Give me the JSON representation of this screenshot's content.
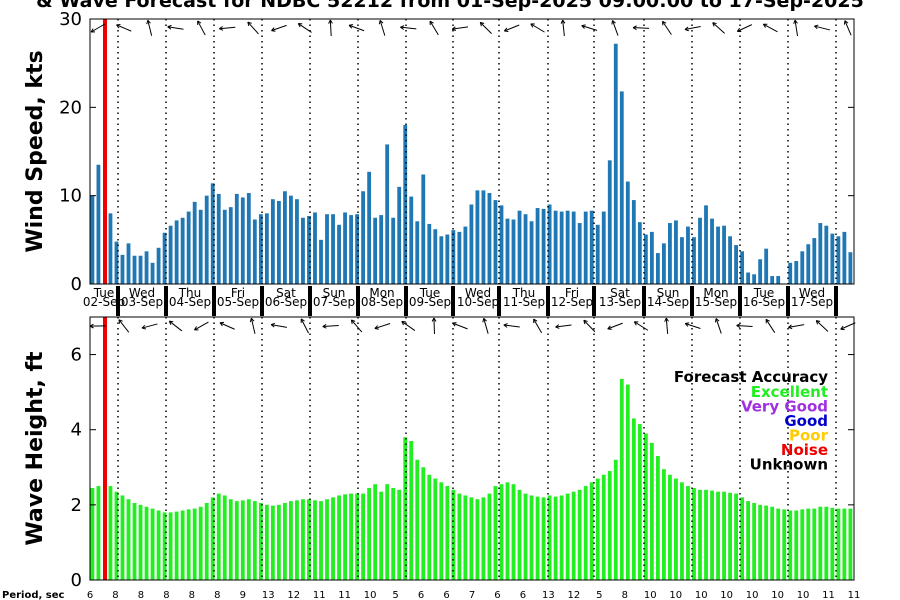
{
  "title": "& Wave Forecast for NDBC 52212 from 01-Sep-2025 09:00:00 to 17-Sep-2025",
  "chart_data": [
    {
      "type": "bar",
      "ylabel": "Wind Speed, kts",
      "ylim": [
        0,
        30
      ],
      "yticks": [
        "0",
        "10",
        "20",
        "30"
      ],
      "values": [
        10,
        13.5,
        0,
        8,
        4.8,
        3.3,
        4.6,
        3.2,
        3.2,
        3.7,
        2.4,
        4.1,
        5.8,
        6.6,
        7.2,
        7.5,
        8.2,
        9.3,
        8.4,
        10,
        11.4,
        10.2,
        8.4,
        8.7,
        10.2,
        9.8,
        10.3,
        7.3,
        7.9,
        8,
        9.6,
        9.4,
        10.5,
        10,
        9.6,
        7.5,
        7.7,
        8.1,
        5,
        7.9,
        7.9,
        6.7,
        8.1,
        7.8,
        7.9,
        10.5,
        12.7,
        7.5,
        7.8,
        15.8,
        7.5,
        11,
        18,
        9.9,
        7.1,
        12.4,
        6.8,
        6.2,
        5.4,
        5.6,
        6.1,
        5.9,
        6.5,
        9,
        10.6,
        10.6,
        10.3,
        9.5,
        8.9,
        7.4,
        7.3,
        8.3,
        7.9,
        7.1,
        8.6,
        8.5,
        9,
        8.3,
        8.2,
        8.3,
        8.2,
        6.9,
        8.2,
        8.3,
        6.7,
        8.2,
        14,
        27.2,
        21.8,
        11.6,
        9.5,
        7,
        5.6,
        5.9,
        3.5,
        4.6,
        6.9,
        7.2,
        5.3,
        6.5,
        5.3,
        7.5,
        8.9,
        7.4,
        6.5,
        6.6,
        5.4,
        4.4,
        3.7,
        1.3,
        1.1,
        2.8,
        4,
        0.9,
        0.9,
        0,
        2.4,
        2.6,
        3.7,
        4.5,
        5.2,
        6.9,
        6.6,
        5.7,
        5.4,
        5.9,
        3.6
      ]
    },
    {
      "type": "bar",
      "ylabel": "Wave Height, ft",
      "ylim": [
        0,
        7
      ],
      "yticks": [
        "0",
        "2",
        "4",
        "6"
      ],
      "values": [
        2.45,
        2.5,
        0,
        2.5,
        2.35,
        2.25,
        2.15,
        2.05,
        2,
        1.95,
        1.9,
        1.85,
        1.8,
        1.8,
        1.82,
        1.85,
        1.88,
        1.9,
        1.95,
        2.05,
        2.2,
        2.3,
        2.25,
        2.15,
        2.1,
        2.12,
        2.15,
        2.1,
        2.05,
        2,
        1.98,
        2,
        2.05,
        2.1,
        2.12,
        2.15,
        2.15,
        2.12,
        2.1,
        2.15,
        2.2,
        2.25,
        2.28,
        2.3,
        2.3,
        2.3,
        2.45,
        2.55,
        2.35,
        2.55,
        2.45,
        2.4,
        3.8,
        3.7,
        3.2,
        3,
        2.8,
        2.7,
        2.6,
        2.5,
        2.4,
        2.3,
        2.25,
        2.2,
        2.15,
        2.2,
        2.3,
        2.5,
        2.55,
        2.6,
        2.55,
        2.4,
        2.3,
        2.25,
        2.22,
        2.2,
        2.25,
        2.22,
        2.25,
        2.3,
        2.35,
        2.4,
        2.5,
        2.6,
        2.7,
        2.8,
        2.9,
        3.2,
        5.35,
        5.2,
        4.3,
        4.15,
        3.9,
        3.65,
        3.3,
        2.95,
        2.8,
        2.7,
        2.6,
        2.5,
        2.45,
        2.4,
        2.4,
        2.38,
        2.35,
        2.35,
        2.32,
        2.3,
        2.2,
        2.1,
        2.05,
        2,
        1.98,
        1.95,
        1.9,
        1.88,
        1.85,
        1.85,
        1.88,
        1.9,
        1.9,
        1.95,
        1.95,
        1.92,
        1.9,
        1.9,
        1.9
      ]
    }
  ],
  "day_labels": [
    {
      "day": "Tue",
      "date": "02-Sep"
    },
    {
      "day": "Wed",
      "date": "03-Sep"
    },
    {
      "day": "Thu",
      "date": "04-Sep"
    },
    {
      "day": "Fri",
      "date": "05-Sep"
    },
    {
      "day": "Sat",
      "date": "06-Sep"
    },
    {
      "day": "Sun",
      "date": "07-Sep"
    },
    {
      "day": "Mon",
      "date": "08-Sep"
    },
    {
      "day": "Tue",
      "date": "09-Sep"
    },
    {
      "day": "Wed",
      "date": "10-Sep"
    },
    {
      "day": "Thu",
      "date": "11-Sep"
    },
    {
      "day": "Fri",
      "date": "12-Sep"
    },
    {
      "day": "Sat",
      "date": "13-Sep"
    },
    {
      "day": "Sun",
      "date": "14-Sep"
    },
    {
      "day": "Mon",
      "date": "15-Sep"
    },
    {
      "day": "Tue",
      "date": "16-Sep"
    },
    {
      "day": "Wed",
      "date": "17-Sep"
    }
  ],
  "period_label": "Period, sec",
  "periods": [
    "6",
    "8",
    "8",
    "8",
    "8",
    "8",
    "9",
    "13",
    "12",
    "11",
    "11",
    "10",
    "5",
    "6",
    "6",
    "7",
    "6",
    "6",
    "13",
    "12",
    "5",
    "8",
    "10",
    "10",
    "10",
    "10",
    "10",
    "10",
    "10",
    "11",
    "11"
  ],
  "legend": {
    "title": "Forecast Accuracy",
    "items": [
      {
        "label": "Excellent",
        "color": "#22ee22"
      },
      {
        "label": "Very Good",
        "color": "#a030e0"
      },
      {
        "label": "Good",
        "color": "#0000cc"
      },
      {
        "label": "Poor",
        "color": "#ffcc00"
      },
      {
        "label": "Noise",
        "color": "#ee0000"
      },
      {
        "label": "Unknown",
        "color": "#000000"
      }
    ]
  },
  "colors": {
    "wind_bar": "#1f77b4",
    "wave_bar": "#22ee22",
    "now_line": "#ee0000"
  }
}
